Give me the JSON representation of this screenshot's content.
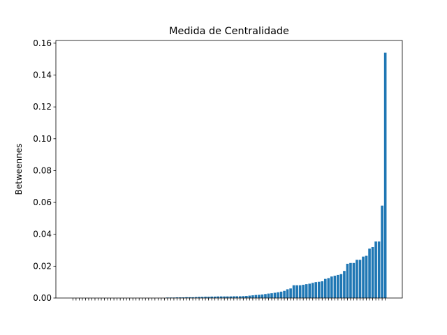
{
  "chart_data": {
    "type": "bar",
    "title": "Medida de Centralidade",
    "y_label": "Betweennes",
    "color": "#1f77b4",
    "categories": [
      null,
      null,
      null,
      null,
      null,
      null,
      null,
      null,
      null,
      null,
      null,
      null,
      null,
      null,
      null,
      null,
      null,
      null,
      null,
      null,
      null,
      null,
      null,
      null,
      null,
      null,
      null,
      null,
      null,
      null,
      null,
      null,
      null,
      null,
      null,
      null,
      null,
      null,
      null,
      null,
      null,
      null,
      null,
      null,
      null,
      null,
      null,
      null,
      null,
      null,
      null,
      null,
      null,
      null,
      null,
      null,
      null,
      null,
      null,
      null,
      null,
      null,
      null,
      null,
      null,
      null,
      null,
      null,
      null,
      null,
      null,
      null,
      null,
      null,
      null,
      null,
      null,
      null,
      null,
      null,
      null,
      null,
      null,
      null,
      null,
      null,
      null,
      null,
      null,
      null,
      null,
      null,
      null,
      null,
      null,
      null,
      null,
      null,
      null,
      null
    ],
    "values": [
      0,
      0,
      0,
      0,
      0,
      0,
      0,
      0,
      0,
      0,
      0,
      0,
      0,
      0,
      0,
      0,
      0,
      0,
      0,
      0,
      0,
      0,
      0,
      0,
      0,
      0,
      0,
      0,
      0,
      0,
      0.0003,
      0.0003,
      0.0003,
      0.0004,
      0.0004,
      0.0004,
      0.0005,
      0.0005,
      0.0005,
      0.0006,
      0.0007,
      0.0007,
      0.0008,
      0.0008,
      0.0009,
      0.0009,
      0.001,
      0.001,
      0.001,
      0.001,
      0.001,
      0.0011,
      0.0011,
      0.0011,
      0.0012,
      0.0013,
      0.0015,
      0.0017,
      0.0019,
      0.002,
      0.0022,
      0.0025,
      0.0028,
      0.003,
      0.0033,
      0.0036,
      0.004,
      0.0045,
      0.0055,
      0.006,
      0.008,
      0.008,
      0.008,
      0.0083,
      0.0087,
      0.009,
      0.0095,
      0.01,
      0.0102,
      0.0105,
      0.012,
      0.0125,
      0.0135,
      0.014,
      0.0145,
      0.015,
      0.017,
      0.0215,
      0.022,
      0.022,
      0.024,
      0.024,
      0.026,
      0.0265,
      0.031,
      0.032,
      0.0355,
      0.0355,
      0.058,
      0.154
    ],
    "ylim": [
      0,
      0.1617
    ],
    "yticks": [
      {
        "value": 0,
        "label": "0.00"
      },
      {
        "value": 0.02,
        "label": "0.02"
      },
      {
        "value": 0.04,
        "label": "0.04"
      },
      {
        "value": 0.06,
        "label": "0.06"
      },
      {
        "value": 0.08,
        "label": "0.08"
      },
      {
        "value": 0.1,
        "label": "0.10"
      },
      {
        "value": 0.12,
        "label": "0.12"
      },
      {
        "value": 0.14,
        "label": "0.14"
      },
      {
        "value": 0.16,
        "label": "0.16"
      }
    ]
  }
}
